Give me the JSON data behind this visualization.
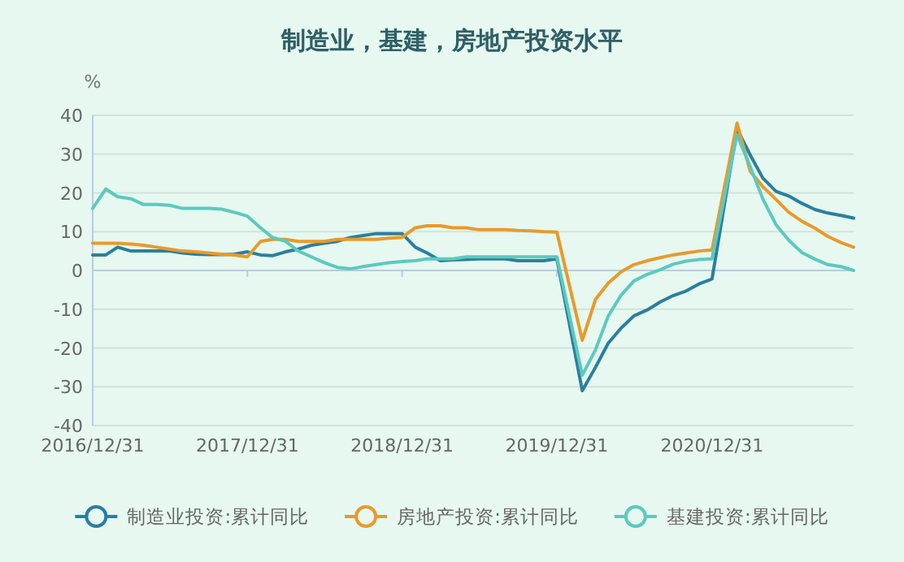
{
  "chart_data": {
    "type": "line",
    "title": "制造业，基建，房地产投资水平",
    "ylabel": "%",
    "x": [
      "2016-12-31",
      "2017-01-31",
      "2017-02-28",
      "2017-03-31",
      "2017-04-30",
      "2017-05-31",
      "2017-06-30",
      "2017-07-31",
      "2017-08-31",
      "2017-09-30",
      "2017-10-31",
      "2017-11-30",
      "2017-12-31",
      "2018-01-31",
      "2018-02-28",
      "2018-03-31",
      "2018-04-30",
      "2018-05-31",
      "2018-06-30",
      "2018-07-31",
      "2018-08-31",
      "2018-09-30",
      "2018-10-31",
      "2018-11-30",
      "2018-12-31",
      "2019-01-31",
      "2019-02-28",
      "2019-03-31",
      "2019-04-30",
      "2019-05-31",
      "2019-06-30",
      "2019-07-31",
      "2019-08-31",
      "2019-09-30",
      "2019-10-31",
      "2019-11-30",
      "2019-12-31",
      "2020-02-29",
      "2020-03-31",
      "2020-04-30",
      "2020-05-31",
      "2020-06-30",
      "2020-07-31",
      "2020-08-31",
      "2020-09-30",
      "2020-10-31",
      "2020-11-30",
      "2020-12-31",
      "2021-02-28",
      "2021-03-31",
      "2021-04-30",
      "2021-05-31",
      "2021-06-30",
      "2021-07-31",
      "2021-08-31",
      "2021-09-30",
      "2021-10-31",
      "2021-11-30"
    ],
    "series": [
      {
        "name": "制造业投资:累计同比",
        "color": "#2a7f9e",
        "values": [
          4,
          4,
          6,
          5,
          5,
          5,
          5,
          4.5,
          4.2,
          4.1,
          4.1,
          4.2,
          4.8,
          4,
          3.8,
          4.8,
          5.5,
          6.5,
          7,
          7.5,
          8.5,
          9,
          9.5,
          9.5,
          9.5,
          6,
          4.5,
          2.5,
          2.7,
          2.8,
          3,
          3,
          3,
          2.5,
          2.5,
          2.5,
          3,
          -31,
          -25,
          -18.8,
          -14.8,
          -11.7,
          -10.2,
          -8.1,
          -6.5,
          -5.3,
          -3.5,
          -2.2,
          36.5,
          29.8,
          23.8,
          20.4,
          19.2,
          17.3,
          15.7,
          14.8,
          14.2,
          13.5
        ]
      },
      {
        "name": "房地产投资:累计同比",
        "color": "#e89a2b",
        "values": [
          7,
          7,
          7,
          6.8,
          6.5,
          6,
          5.5,
          5,
          4.8,
          4.5,
          4.2,
          4,
          3.5,
          7.5,
          8,
          8,
          7.5,
          7.5,
          7.5,
          8,
          8,
          8,
          8,
          8.3,
          8.5,
          11,
          11.5,
          11.5,
          11,
          11,
          10.5,
          10.5,
          10.5,
          10.3,
          10.2,
          10,
          9.9,
          -18,
          -7.5,
          -3.3,
          -0.3,
          1.5,
          2.5,
          3.3,
          4,
          4.5,
          5,
          5.3,
          38,
          25.6,
          21.6,
          18.3,
          15,
          12.7,
          10.9,
          8.8,
          7.2,
          6
        ]
      },
      {
        "name": "基建投资:累计同比",
        "color": "#5cc9be",
        "values": [
          16,
          21,
          19,
          18.5,
          17,
          17,
          16.8,
          16,
          16,
          16,
          15.8,
          15,
          14,
          11,
          8.5,
          7.5,
          5,
          3.5,
          2,
          0.8,
          0.4,
          1,
          1.5,
          2,
          2.3,
          2.5,
          3,
          3,
          3,
          3.5,
          3.5,
          3.5,
          3.5,
          3.5,
          3.5,
          3.5,
          3.5,
          -27,
          -20.5,
          -11.8,
          -6.3,
          -2.7,
          -1,
          0.2,
          1.6,
          2.4,
          2.8,
          3,
          35,
          26.8,
          18.4,
          11.8,
          7.8,
          4.6,
          2.9,
          1.5,
          1,
          0
        ]
      }
    ],
    "xlim": [
      "2016-12-31",
      "2021-11-30"
    ],
    "xticks": [
      {
        "value": "2016-12-31",
        "label": "2016/12/31"
      },
      {
        "value": "2017-12-31",
        "label": "2017/12/31"
      },
      {
        "value": "2018-12-31",
        "label": "2018/12/31"
      },
      {
        "value": "2019-12-31",
        "label": "2019/12/31"
      },
      {
        "value": "2020-12-31",
        "label": "2020/12/31"
      }
    ],
    "ylim": [
      -40,
      40
    ],
    "yticks": [
      -40,
      -30,
      -20,
      -10,
      0,
      10,
      20,
      30,
      40
    ],
    "grid": "y",
    "legend": "bottom",
    "marker": "none",
    "line_style": "solid"
  }
}
